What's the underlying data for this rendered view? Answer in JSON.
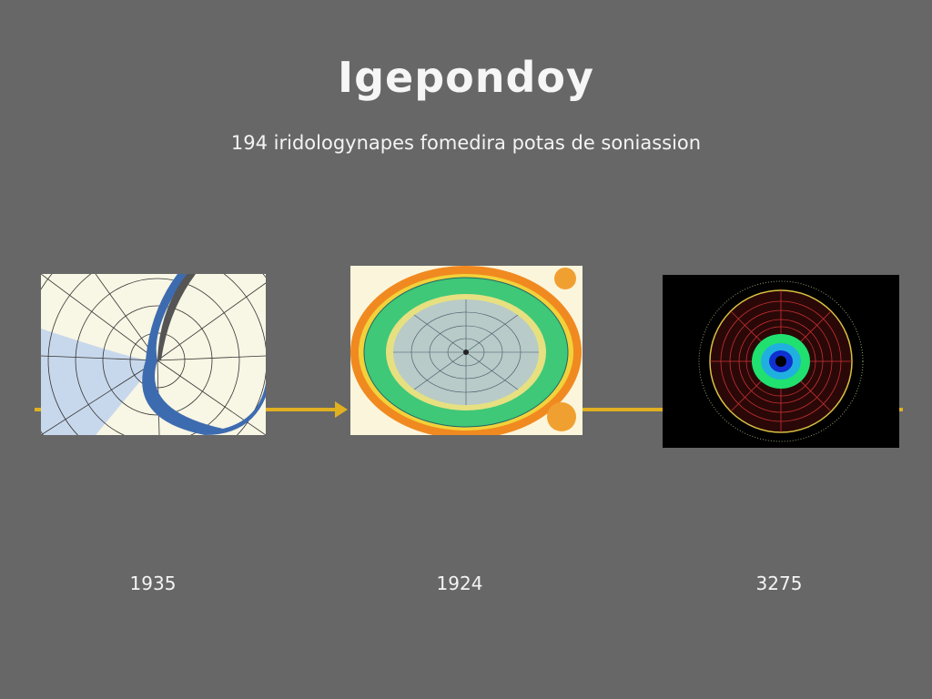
{
  "title": "Igepondoy",
  "subtitle": "194 iridologynapes fomedira potas de soniassion",
  "timeline": {
    "arrow_color": "#e0b021",
    "items": [
      {
        "label": "1935",
        "image": "hand-drawn polar grid map"
      },
      {
        "label": "1924",
        "image": "colored concentric iris chart"
      },
      {
        "label": "3275",
        "image": "neon concentric iris diagram on black"
      }
    ]
  }
}
